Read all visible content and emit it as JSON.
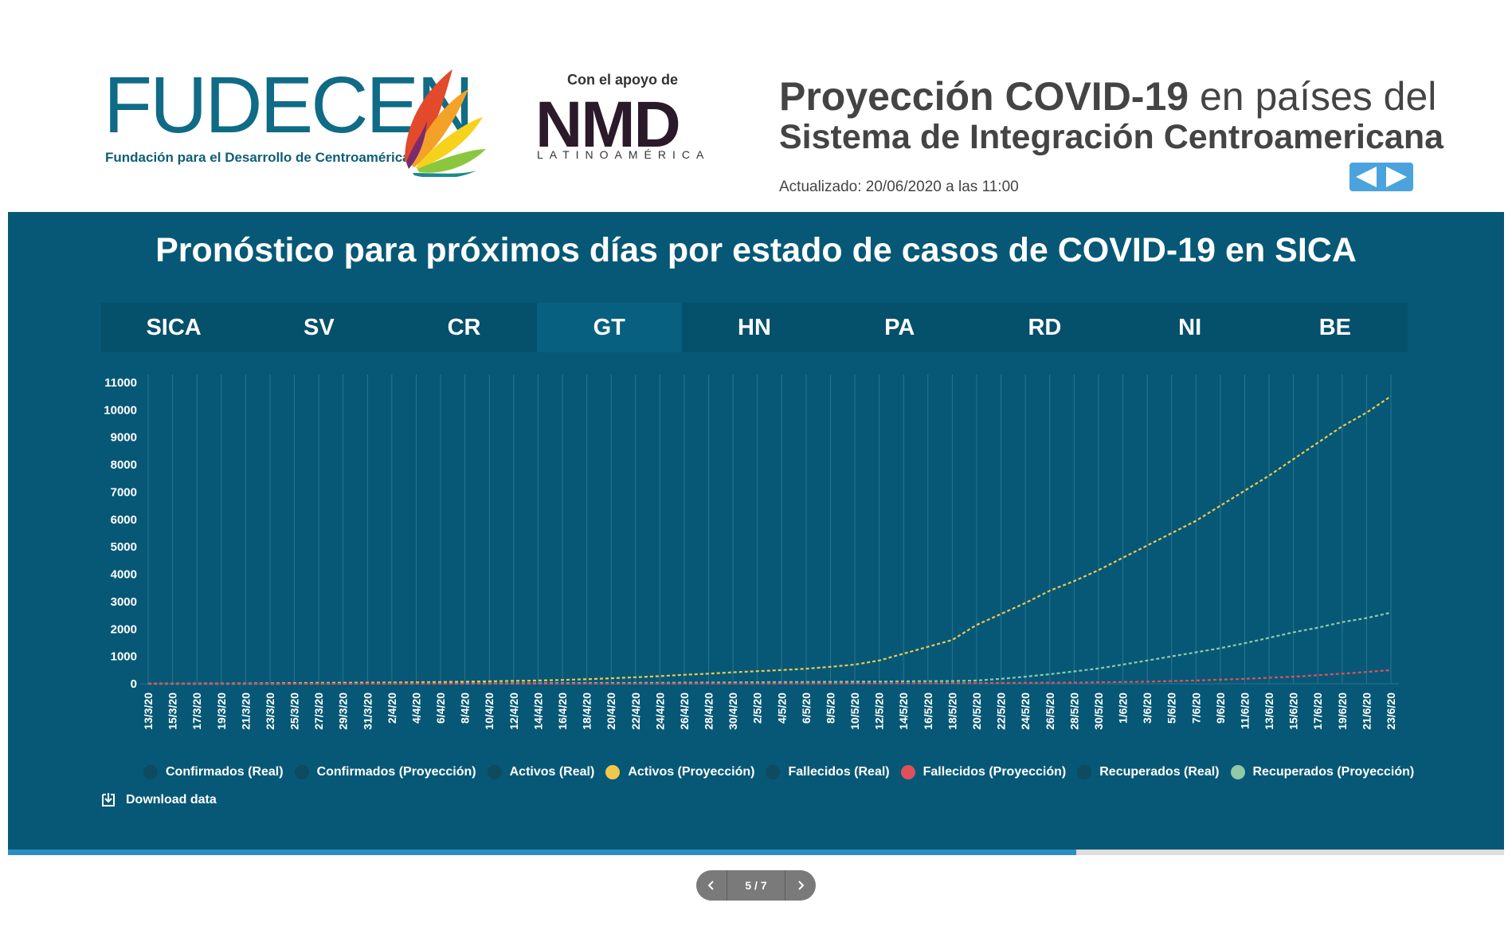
{
  "header": {
    "logo_text": "FUDECEN",
    "logo_tagline": "Fundación para el Desarrollo de Centroamérica",
    "support_label": "Con el apoyo de",
    "support_logo": "NMD",
    "support_sub": "LATINOAMÉRICA",
    "title_bold": "Proyección COVID-19",
    "title_rest": " en países del",
    "title_line2": "Sistema de Integración Centroamericana",
    "updated": "Actualizado: 20/06/2020 a las 11:00"
  },
  "panel": {
    "title": "Pronóstico para próximos días por estado de casos de COVID-19 en SICA",
    "tabs": [
      "SICA",
      "SV",
      "CR",
      "GT",
      "HN",
      "PA",
      "RD",
      "NI",
      "BE"
    ],
    "active_tab": "GT",
    "download_label": "Download data"
  },
  "pager": {
    "label": "5 / 7",
    "progress": 0.714
  },
  "colors": {
    "panel_bg": "#075876",
    "accent": "#4aa3dd"
  },
  "chart_data": {
    "type": "line",
    "title": "",
    "xlabel": "",
    "ylabel": "",
    "ylim": [
      0,
      11000
    ],
    "yticks": [
      0,
      1000,
      2000,
      3000,
      4000,
      5000,
      6000,
      7000,
      8000,
      9000,
      10000,
      11000
    ],
    "grid": "vertical",
    "x_tick_labels": [
      "13/3/20",
      "15/3/20",
      "17/3/20",
      "19/3/20",
      "21/3/20",
      "23/3/20",
      "25/3/20",
      "27/3/20",
      "29/3/20",
      "31/3/20",
      "2/4/20",
      "4/4/20",
      "6/4/20",
      "8/4/20",
      "10/4/20",
      "12/4/20",
      "14/4/20",
      "16/4/20",
      "18/4/20",
      "20/4/20",
      "22/4/20",
      "24/4/20",
      "26/4/20",
      "28/4/20",
      "30/4/20",
      "2/5/20",
      "4/5/20",
      "6/5/20",
      "8/5/20",
      "10/5/20",
      "12/5/20",
      "14/5/20",
      "16/5/20",
      "18/5/20",
      "20/5/20",
      "22/5/20",
      "24/5/20",
      "26/5/20",
      "28/5/20",
      "30/5/20",
      "1/6/20",
      "3/6/20",
      "5/6/20",
      "7/6/20",
      "9/6/20",
      "11/6/20",
      "13/6/20",
      "15/6/20",
      "17/6/20",
      "19/6/20",
      "21/6/20",
      "23/6/20"
    ],
    "legend": [
      {
        "name": "Confirmados (Real)",
        "color": "#0e4a60"
      },
      {
        "name": "Confirmados (Proyección)",
        "color": "#0e4a60"
      },
      {
        "name": "Activos (Real)",
        "color": "#0e4a60"
      },
      {
        "name": "Activos (Proyección)",
        "color": "#f0c94c"
      },
      {
        "name": "Fallecidos (Real)",
        "color": "#0e4a60"
      },
      {
        "name": "Fallecidos (Proyección)",
        "color": "#e0505a"
      },
      {
        "name": "Recuperados (Real)",
        "color": "#0e4a60"
      },
      {
        "name": "Recuperados (Proyección)",
        "color": "#8fc9a8"
      }
    ],
    "series": [
      {
        "name": "Activos (Proyección)",
        "color": "#f0c94c",
        "values": [
          2,
          3,
          5,
          8,
          12,
          18,
          25,
          32,
          38,
          42,
          48,
          55,
          65,
          75,
          90,
          105,
          120,
          140,
          170,
          200,
          240,
          280,
          330,
          370,
          420,
          460,
          500,
          550,
          620,
          700,
          850,
          1100,
          1350,
          1600,
          2150,
          2550,
          2950,
          3400,
          3750,
          4150,
          4600,
          5050,
          5500,
          5950,
          6500,
          7050,
          7600,
          8200,
          8800,
          9400,
          9900,
          10500
        ]
      },
      {
        "name": "Recuperados (Proyección)",
        "color": "#8fc9a8",
        "values": [
          0,
          0,
          0,
          0,
          1,
          1,
          2,
          3,
          5,
          6,
          8,
          10,
          12,
          14,
          16,
          18,
          20,
          22,
          25,
          28,
          32,
          36,
          40,
          45,
          50,
          55,
          60,
          65,
          70,
          75,
          80,
          90,
          95,
          100,
          120,
          180,
          260,
          350,
          450,
          560,
          700,
          850,
          1000,
          1150,
          1300,
          1480,
          1680,
          1880,
          2050,
          2250,
          2400,
          2600
        ]
      },
      {
        "name": "Fallecidos (Proyección)",
        "color": "#e0505a",
        "values": [
          0,
          0,
          0,
          0,
          0,
          1,
          1,
          1,
          1,
          2,
          2,
          2,
          3,
          3,
          3,
          4,
          4,
          5,
          5,
          6,
          6,
          7,
          8,
          8,
          9,
          10,
          11,
          12,
          13,
          14,
          15,
          18,
          20,
          22,
          25,
          30,
          35,
          40,
          45,
          55,
          65,
          80,
          100,
          120,
          150,
          180,
          220,
          260,
          310,
          370,
          430,
          500
        ]
      }
    ]
  }
}
